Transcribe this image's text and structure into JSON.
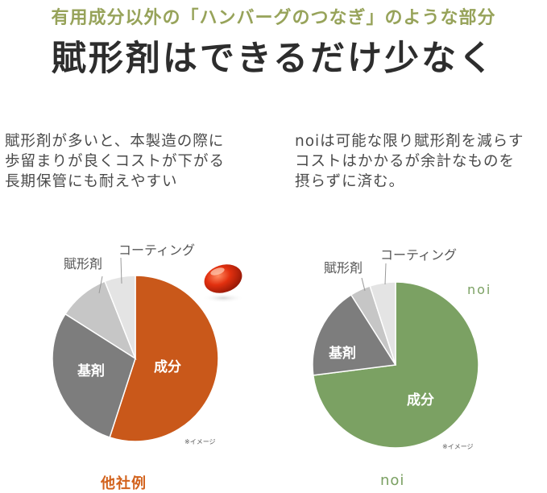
{
  "header": {
    "subtitle": "有用成分以外の「ハンバーグのつなぎ」のような部分",
    "headline": "賦形剤はできるだけ少なく"
  },
  "left": {
    "description": [
      "賦形剤が多いと、本製造の際に",
      "歩留まりが良くコストが下がる",
      "長期保管にも耐えやすい"
    ],
    "caption": "他社例",
    "note": "※イメージ"
  },
  "right": {
    "description": [
      "noiは可能な限り賦形剤を減らす",
      "コストはかかるが余計なものを",
      "摂らずに済む。"
    ],
    "caption": "noi",
    "note": "※イメージ",
    "brand_label": "noi"
  },
  "colors": {
    "subtitle": "#97a35a",
    "left_active": "#c9581a",
    "kizai": "#7d7d7d",
    "keizai": "#c6c6c6",
    "coating": "#e4e4e4",
    "right_active": "#7ba163"
  },
  "chart_data": [
    {
      "type": "pie",
      "title": "他社例",
      "labels": [
        "成分",
        "基剤",
        "賦形剤",
        "コーティング"
      ],
      "values": [
        55,
        29,
        10,
        6
      ]
    },
    {
      "type": "pie",
      "title": "noi",
      "labels": [
        "成分",
        "基剤",
        "賦形剤",
        "コーティング"
      ],
      "values": [
        73,
        18,
        4,
        5
      ]
    }
  ]
}
